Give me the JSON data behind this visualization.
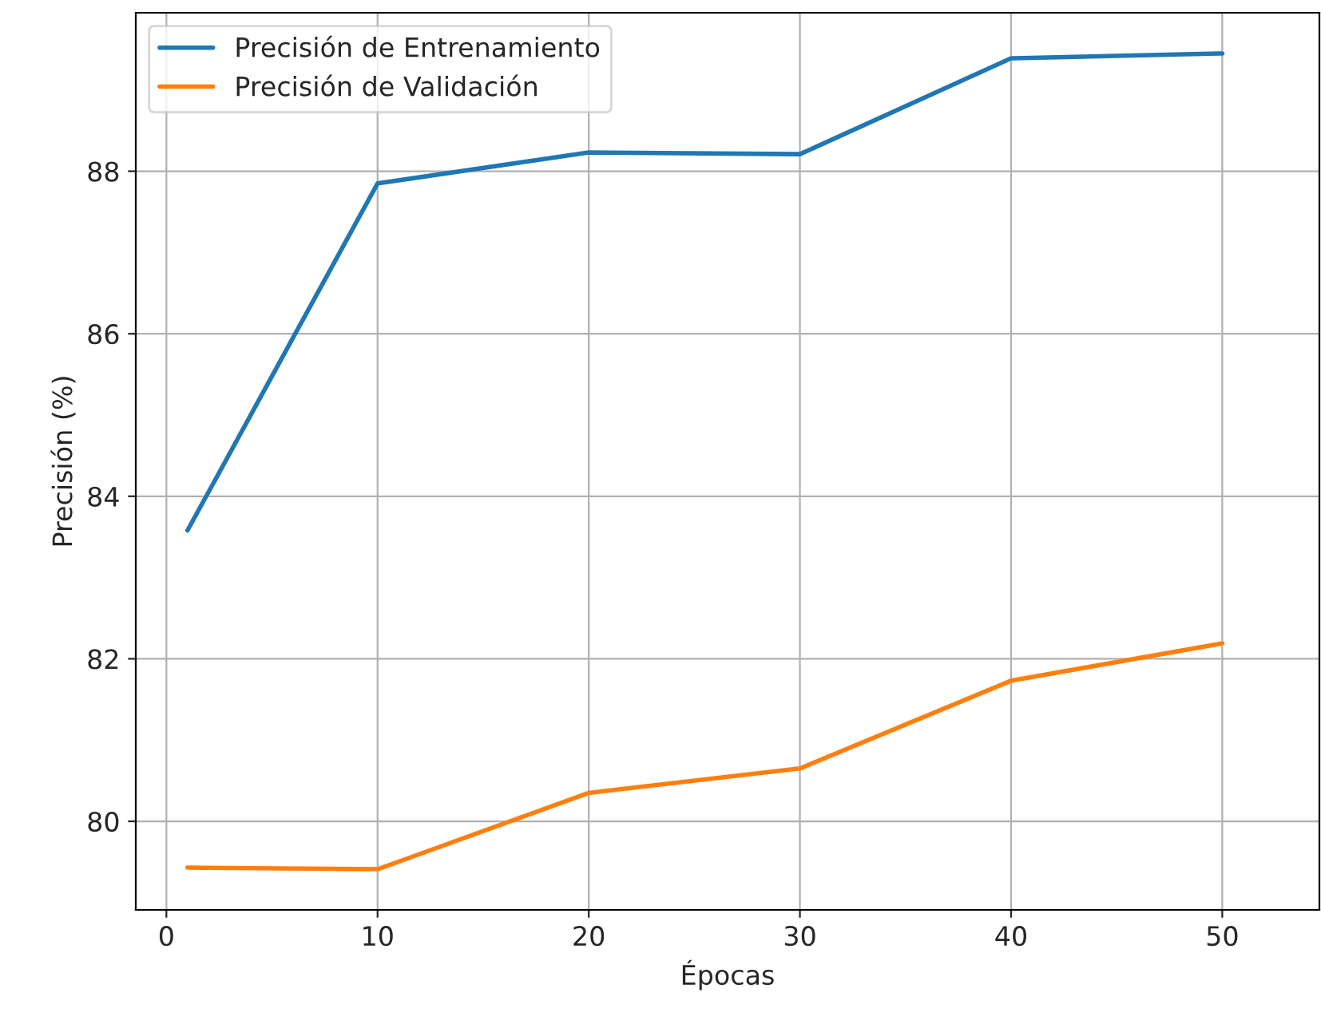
{
  "chart_data": {
    "type": "line",
    "xlabel": "Épocas",
    "ylabel": "Precisión (%)",
    "x": [
      1,
      10,
      20,
      30,
      40,
      50
    ],
    "series": [
      {
        "name": "Precisión de Entrenamiento",
        "color": "#1f77b4",
        "values": [
          83.58,
          87.85,
          88.23,
          88.21,
          89.39,
          89.45
        ]
      },
      {
        "name": "Precisión de Validación",
        "color": "#ff7f0e",
        "values": [
          79.43,
          79.41,
          80.35,
          80.65,
          81.73,
          82.19
        ]
      }
    ],
    "xlim": [
      -1.45,
      54.6
    ],
    "ylim": [
      78.91,
      89.95
    ],
    "xticks": [
      0,
      10,
      20,
      30,
      40,
      50
    ],
    "yticks": [
      80,
      82,
      84,
      86,
      88
    ],
    "grid": true,
    "legend": "top left",
    "marker": "none",
    "line_style": "solid"
  }
}
